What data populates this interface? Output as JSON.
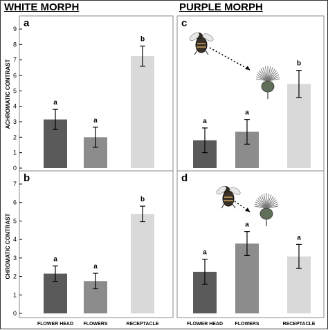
{
  "titles": {
    "white": "WHITE MORPH",
    "purple": "PURPLE MORPH"
  },
  "axis_labels": {
    "top": "ACHROMATIC CONTRAST",
    "bottom": "CHROMATIC CONTRAST"
  },
  "colors": {
    "FLOWER HEAD": "#5a5a5a",
    "FLOWERS": "#8c8c8c",
    "RECEPTACLE": "#d9d9d9",
    "frame": "#8a8a8a"
  },
  "icons": {
    "bee": "bee-icon",
    "flower": "thistle-flower-icon",
    "arrow": "dashed-arrow-icon"
  },
  "chart_data": [
    {
      "panel": "a",
      "type": "bar",
      "morph": "WHITE MORPH",
      "ylabel": "ACHROMATIC CONTRAST",
      "ylim": [
        0,
        9
      ],
      "yticks": [
        0,
        1,
        2,
        3,
        4,
        5,
        6,
        7,
        8,
        9
      ],
      "categories": [
        "FLOWER HEAD",
        "FLOWERS",
        "RECEPTACLE"
      ],
      "values": [
        3.15,
        2.0,
        7.25
      ],
      "errors": [
        0.65,
        0.65,
        0.65
      ],
      "significance": [
        "a",
        "a",
        "b"
      ],
      "show_category_labels": false,
      "has_icons": false
    },
    {
      "panel": "b",
      "type": "bar",
      "morph": "WHITE MORPH",
      "ylabel": "CHROMATIC CONTRAST",
      "ylim": [
        0,
        7
      ],
      "yticks": [
        0,
        1,
        2,
        3,
        4,
        5,
        6,
        7
      ],
      "categories": [
        "FLOWER HEAD",
        "FLOWERS",
        "RECEPTACLE"
      ],
      "values": [
        2.15,
        1.75,
        5.38
      ],
      "errors": [
        0.42,
        0.42,
        0.42
      ],
      "significance": [
        "a",
        "a",
        "b"
      ],
      "show_category_labels": true,
      "has_icons": false
    },
    {
      "panel": "c",
      "type": "bar",
      "morph": "PURPLE MORPH",
      "ylabel": "",
      "ylim": [
        0,
        9
      ],
      "yticks": [],
      "categories": [
        "FLOWER HEAD",
        "FLOWERS",
        "RECEPTACLE"
      ],
      "values": [
        1.8,
        2.35,
        5.45
      ],
      "errors": [
        0.8,
        0.8,
        0.88
      ],
      "significance": [
        "a",
        "a",
        "b"
      ],
      "show_category_labels": false,
      "has_icons": true
    },
    {
      "panel": "d",
      "type": "bar",
      "morph": "PURPLE MORPH",
      "ylabel": "",
      "ylim": [
        0,
        7
      ],
      "yticks": [],
      "categories": [
        "FLOWER HEAD",
        "FLOWERS",
        "RECEPTACLE"
      ],
      "values": [
        2.25,
        3.78,
        3.08
      ],
      "errors": [
        0.68,
        0.65,
        0.65
      ],
      "significance": [
        "a",
        "a",
        "a"
      ],
      "show_category_labels": true,
      "has_icons": true
    }
  ]
}
